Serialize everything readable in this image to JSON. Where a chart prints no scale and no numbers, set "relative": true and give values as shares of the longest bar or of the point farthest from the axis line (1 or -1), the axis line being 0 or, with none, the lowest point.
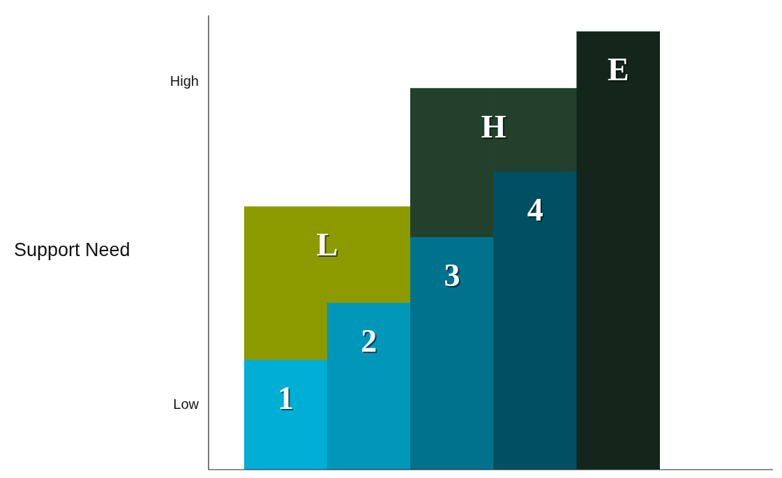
{
  "chart_data": {
    "type": "bar",
    "relative": true,
    "annotations": [
      "High",
      "Low",
      "Support Need",
      "L",
      "H",
      "1",
      "2",
      "3",
      "4",
      "E"
    ],
    "categories": [
      null,
      null,
      null,
      null,
      null
    ],
    "series": [
      {
        "colors": [
          "#00aed6",
          "#0097bb",
          "#00728e",
          "#004f63",
          "#14261c"
        ],
        "values": [
          0.25,
          0.38,
          0.53,
          0.68,
          1
        ]
      },
      {
        "colors": [
          "#8c9a00",
          "#8c9a00",
          "#22402b",
          "#22402b",
          "#14261c"
        ],
        "values": [
          0.35,
          0.22,
          0.34,
          0.19,
          0
        ]
      }
    ],
    "stacked": true,
    "legend": false
  }
}
